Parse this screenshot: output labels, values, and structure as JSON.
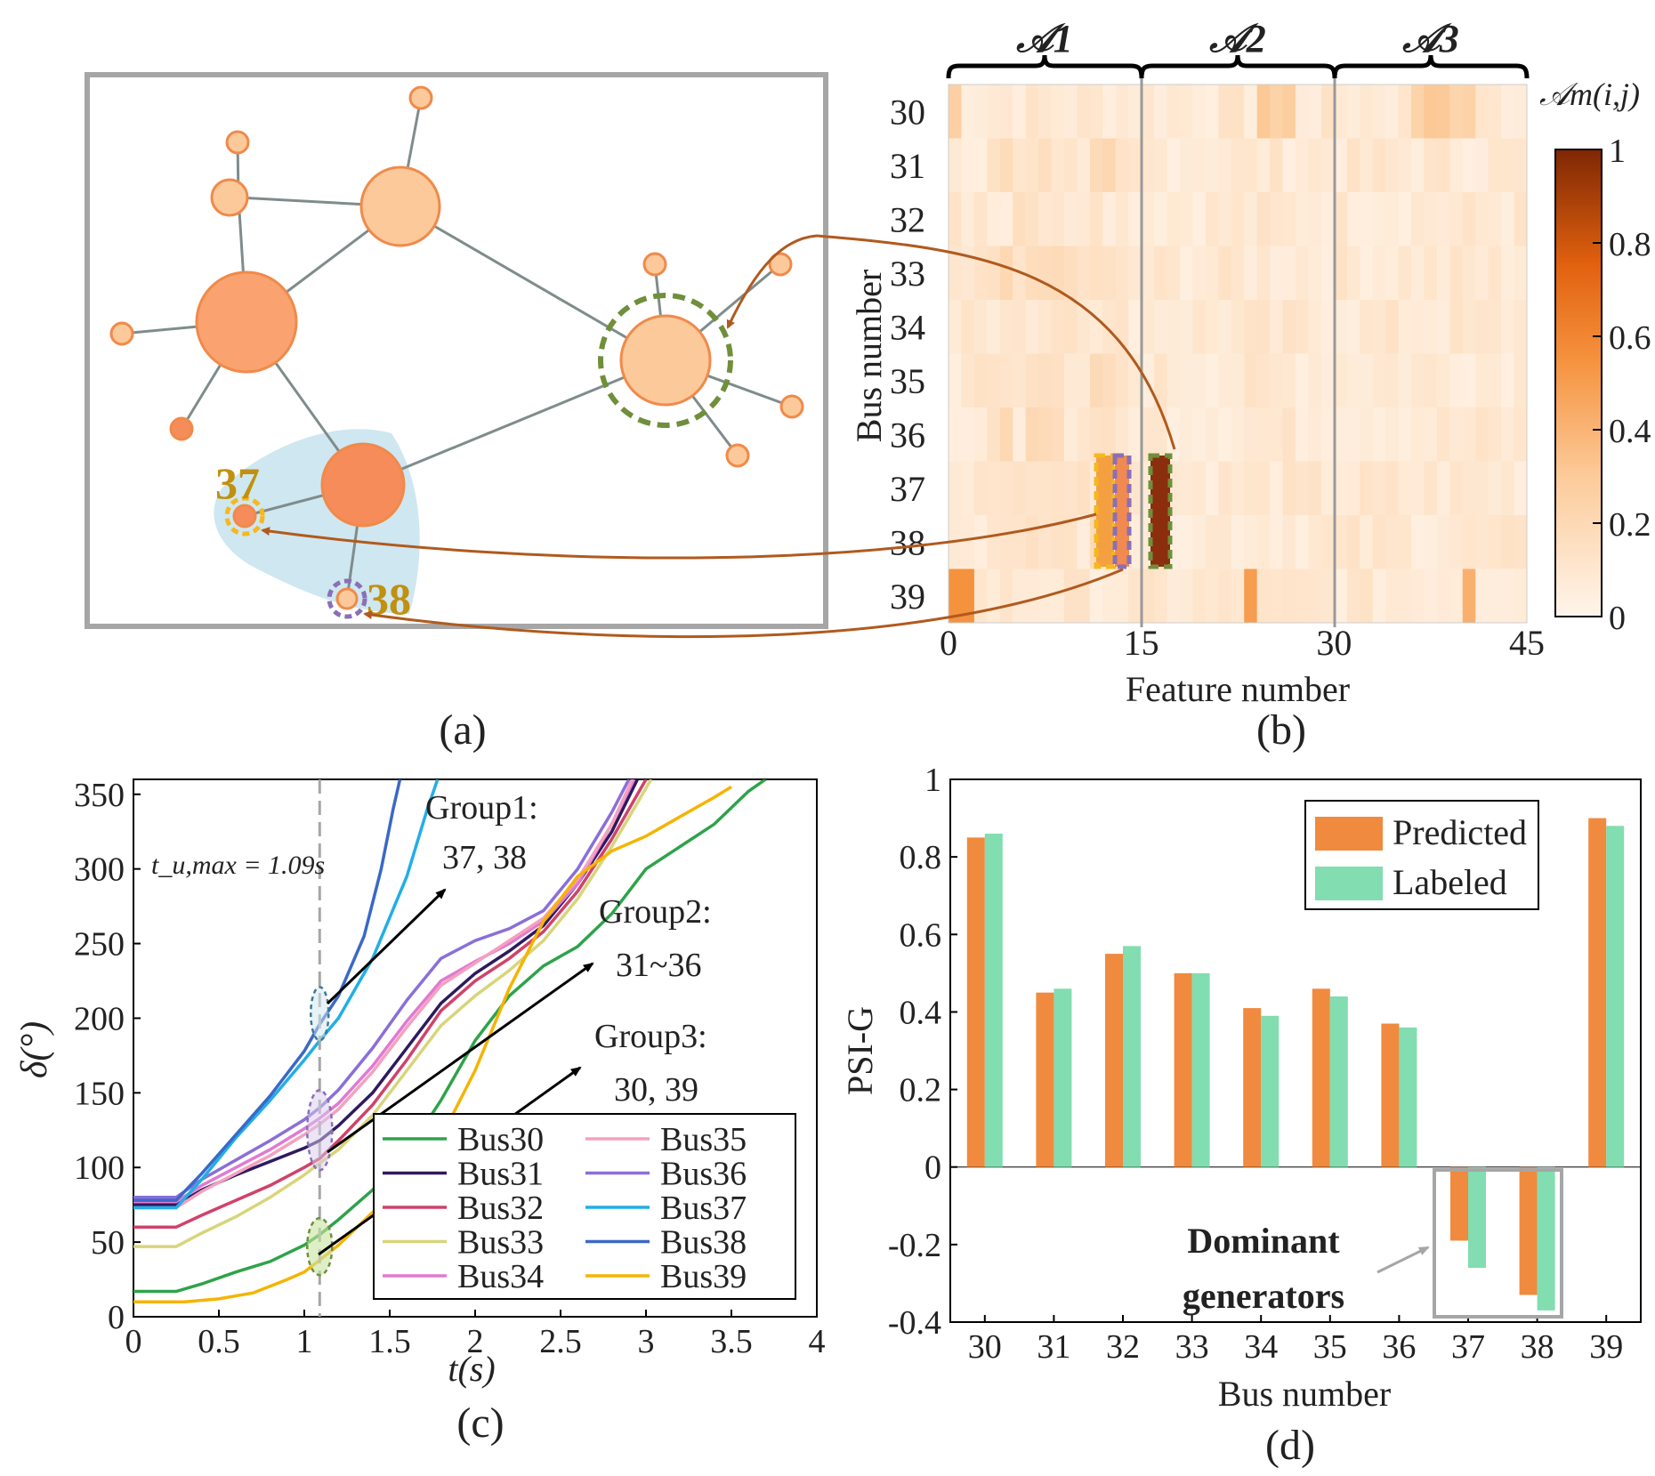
{
  "colors": {
    "node_light": "#FCC99A",
    "node_mid": "#FAA370",
    "node_dark": "#F58C5A",
    "node_stroke": "#F08A4A",
    "edge": "#7F8C8C",
    "frame": "#A6A6A6",
    "bus_label": "#C09010",
    "cluster_bg": "#CFE7F0",
    "arrow": "#B05A1E",
    "ring_green": "#6F8F3A",
    "ring_purple": "#8A6FB8",
    "ring_yellow": "#F5B81E",
    "bar_predicted": "#F08A3E",
    "bar_labeled": "#82DDB0",
    "grey_box": "#A6A6A6"
  },
  "panel_a": {
    "label": "(a)",
    "bus_labels": [
      "37",
      "38"
    ]
  },
  "panel_b": {
    "label": "(b)",
    "xlabel": "Feature number",
    "ylabel": "Bus number",
    "xticks": [
      "0",
      "15",
      "30",
      "45"
    ],
    "rows": [
      "30",
      "31",
      "32",
      "33",
      "34",
      "35",
      "36",
      "37",
      "38",
      "39"
    ],
    "groups": [
      "𝒜1",
      "𝒜2",
      "𝒜3"
    ],
    "colorbar_title": "𝒜m(i,j)",
    "colorbar_ticks": [
      "1",
      "0.8",
      "0.6",
      "0.4",
      "0.2",
      "0"
    ]
  },
  "chart_data": [
    {
      "type": "line",
      "panel": "(c)",
      "xlabel": "t(s)",
      "ylabel": "δ(°)",
      "xlim": [
        0,
        4
      ],
      "ylim": [
        0,
        360
      ],
      "xticks": [
        "0",
        "0.5",
        "1",
        "1.5",
        "2",
        "2.5",
        "3",
        "3.5",
        "4"
      ],
      "yticks": [
        "0",
        "50",
        "100",
        "150",
        "200",
        "250",
        "300",
        "350"
      ],
      "vline_label": "t_u,max = 1.09s",
      "vline_x": 1.09,
      "annotations": [
        {
          "line1": "Group1:",
          "line2": "37, 38"
        },
        {
          "line1": "Group2:",
          "line2": "31~36"
        },
        {
          "line1": "Group3:",
          "line2": "30, 39"
        }
      ],
      "series": [
        {
          "name": "Bus30",
          "color": "#2EA34A",
          "points": [
            [
              0,
              17
            ],
            [
              0.25,
              17
            ],
            [
              0.4,
              22
            ],
            [
              0.6,
              30
            ],
            [
              0.8,
              37
            ],
            [
              1,
              48
            ],
            [
              1.09,
              55
            ],
            [
              1.2,
              65
            ],
            [
              1.4,
              85
            ],
            [
              1.6,
              110
            ],
            [
              1.8,
              145
            ],
            [
              2,
              185
            ],
            [
              2.2,
              215
            ],
            [
              2.4,
              235
            ],
            [
              2.6,
              248
            ],
            [
              2.8,
              270
            ],
            [
              3,
              300
            ],
            [
              3.2,
              315
            ],
            [
              3.4,
              330
            ],
            [
              3.6,
              352
            ],
            [
              3.7,
              360
            ]
          ]
        },
        {
          "name": "Bus31",
          "color": "#2E1A5E",
          "points": [
            [
              0,
              75
            ],
            [
              0.25,
              75
            ],
            [
              0.4,
              85
            ],
            [
              0.6,
              95
            ],
            [
              0.8,
              104
            ],
            [
              1,
              113
            ],
            [
              1.09,
              118
            ],
            [
              1.2,
              128
            ],
            [
              1.4,
              150
            ],
            [
              1.6,
              180
            ],
            [
              1.8,
              210
            ],
            [
              2,
              230
            ],
            [
              2.2,
              245
            ],
            [
              2.4,
              262
            ],
            [
              2.6,
              290
            ],
            [
              2.8,
              325
            ],
            [
              2.95,
              360
            ]
          ]
        },
        {
          "name": "Bus32",
          "color": "#D0426A",
          "points": [
            [
              0,
              60
            ],
            [
              0.25,
              60
            ],
            [
              0.4,
              68
            ],
            [
              0.6,
              78
            ],
            [
              0.8,
              88
            ],
            [
              1,
              100
            ],
            [
              1.09,
              106
            ],
            [
              1.2,
              118
            ],
            [
              1.4,
              142
            ],
            [
              1.6,
              172
            ],
            [
              1.8,
              205
            ],
            [
              2,
              225
            ],
            [
              2.2,
              240
            ],
            [
              2.4,
              258
            ],
            [
              2.6,
              285
            ],
            [
              2.8,
              320
            ],
            [
              3.0,
              360
            ]
          ]
        },
        {
          "name": "Bus33",
          "color": "#D8D57A",
          "points": [
            [
              0,
              47
            ],
            [
              0.25,
              47
            ],
            [
              0.4,
              56
            ],
            [
              0.6,
              67
            ],
            [
              0.8,
              80
            ],
            [
              1,
              95
            ],
            [
              1.09,
              103
            ],
            [
              1.2,
              112
            ],
            [
              1.4,
              135
            ],
            [
              1.6,
              165
            ],
            [
              1.8,
              195
            ],
            [
              2,
              215
            ],
            [
              2.2,
              232
            ],
            [
              2.4,
              252
            ],
            [
              2.6,
              280
            ],
            [
              2.8,
              315
            ],
            [
              3.03,
              360
            ]
          ]
        },
        {
          "name": "Bus34",
          "color": "#E07AD2",
          "points": [
            [
              0,
              77
            ],
            [
              0.25,
              77
            ],
            [
              0.4,
              88
            ],
            [
              0.6,
              100
            ],
            [
              0.8,
              112
            ],
            [
              1,
              126
            ],
            [
              1.09,
              133
            ],
            [
              1.2,
              143
            ],
            [
              1.4,
              168
            ],
            [
              1.6,
              198
            ],
            [
              1.8,
              225
            ],
            [
              2,
              238
            ],
            [
              2.2,
              250
            ],
            [
              2.4,
              265
            ],
            [
              2.6,
              290
            ],
            [
              2.8,
              330
            ],
            [
              2.93,
              360
            ]
          ]
        },
        {
          "name": "Bus35",
          "color": "#F5A0C0",
          "points": [
            [
              0,
              73
            ],
            [
              0.25,
              73
            ],
            [
              0.4,
              84
            ],
            [
              0.6,
              96
            ],
            [
              0.8,
              108
            ],
            [
              1,
              122
            ],
            [
              1.09,
              129
            ],
            [
              1.2,
              139
            ],
            [
              1.4,
              164
            ],
            [
              1.6,
              194
            ],
            [
              1.8,
              222
            ],
            [
              2,
              237
            ],
            [
              2.2,
              252
            ],
            [
              2.4,
              267
            ],
            [
              2.6,
              293
            ],
            [
              2.8,
              330
            ],
            [
              2.92,
              360
            ]
          ]
        },
        {
          "name": "Bus36",
          "color": "#8A6FD8",
          "points": [
            [
              0,
              80
            ],
            [
              0.25,
              80
            ],
            [
              0.4,
              92
            ],
            [
              0.6,
              105
            ],
            [
              0.8,
              118
            ],
            [
              1,
              132
            ],
            [
              1.09,
              140
            ],
            [
              1.2,
              152
            ],
            [
              1.4,
              180
            ],
            [
              1.6,
              212
            ],
            [
              1.8,
              240
            ],
            [
              2,
              252
            ],
            [
              2.2,
              260
            ],
            [
              2.4,
              272
            ],
            [
              2.6,
              300
            ],
            [
              2.8,
              338
            ],
            [
              2.9,
              360
            ]
          ]
        },
        {
          "name": "Bus37",
          "color": "#22AEE6",
          "points": [
            [
              0,
              73
            ],
            [
              0.25,
              73
            ],
            [
              0.4,
              92
            ],
            [
              0.6,
              120
            ],
            [
              0.8,
              145
            ],
            [
              1,
              172
            ],
            [
              1.09,
              185
            ],
            [
              1.2,
              200
            ],
            [
              1.4,
              240
            ],
            [
              1.6,
              295
            ],
            [
              1.72,
              340
            ],
            [
              1.78,
              360
            ]
          ]
        },
        {
          "name": "Bus38",
          "color": "#3A68C8",
          "points": [
            [
              0,
              78
            ],
            [
              0.25,
              78
            ],
            [
              0.4,
              96
            ],
            [
              0.6,
              122
            ],
            [
              0.8,
              148
            ],
            [
              1,
              178
            ],
            [
              1.09,
              196
            ],
            [
              1.2,
              215
            ],
            [
              1.35,
              255
            ],
            [
              1.45,
              300
            ],
            [
              1.52,
              340
            ],
            [
              1.56,
              360
            ]
          ]
        },
        {
          "name": "Bus39",
          "color": "#F5B400",
          "points": [
            [
              0,
              10
            ],
            [
              0.3,
              10
            ],
            [
              0.5,
              12
            ],
            [
              0.7,
              16
            ],
            [
              0.9,
              25
            ],
            [
              1,
              30
            ],
            [
              1.09,
              38
            ],
            [
              1.2,
              48
            ],
            [
              1.4,
              70
            ],
            [
              1.6,
              92
            ],
            [
              1.8,
              120
            ],
            [
              2,
              165
            ],
            [
              2.2,
              220
            ],
            [
              2.4,
              265
            ],
            [
              2.6,
              295
            ],
            [
              2.8,
              312
            ],
            [
              3,
              322
            ],
            [
              3.2,
              335
            ],
            [
              3.4,
              348
            ],
            [
              3.5,
              355
            ]
          ]
        }
      ]
    },
    {
      "type": "bar",
      "panel": "(d)",
      "xlabel": "Bus number",
      "ylabel": "PSI-G",
      "ylim": [
        -0.4,
        1
      ],
      "yticks": [
        "1",
        "0.8",
        "0.6",
        "0.4",
        "0.2",
        "0",
        "-0.2",
        "-0.4"
      ],
      "categories": [
        "30",
        "31",
        "32",
        "33",
        "34",
        "35",
        "36",
        "37",
        "38",
        "39"
      ],
      "series": [
        {
          "name": "Predicted",
          "values": [
            0.85,
            0.45,
            0.55,
            0.5,
            0.41,
            0.46,
            0.37,
            -0.19,
            -0.33,
            0.9
          ]
        },
        {
          "name": "Labeled",
          "values": [
            0.86,
            0.46,
            0.57,
            0.5,
            0.39,
            0.44,
            0.36,
            -0.26,
            -0.37,
            0.88
          ]
        }
      ],
      "annotation": {
        "line1": "Dominant",
        "line2": "generators"
      }
    }
  ]
}
